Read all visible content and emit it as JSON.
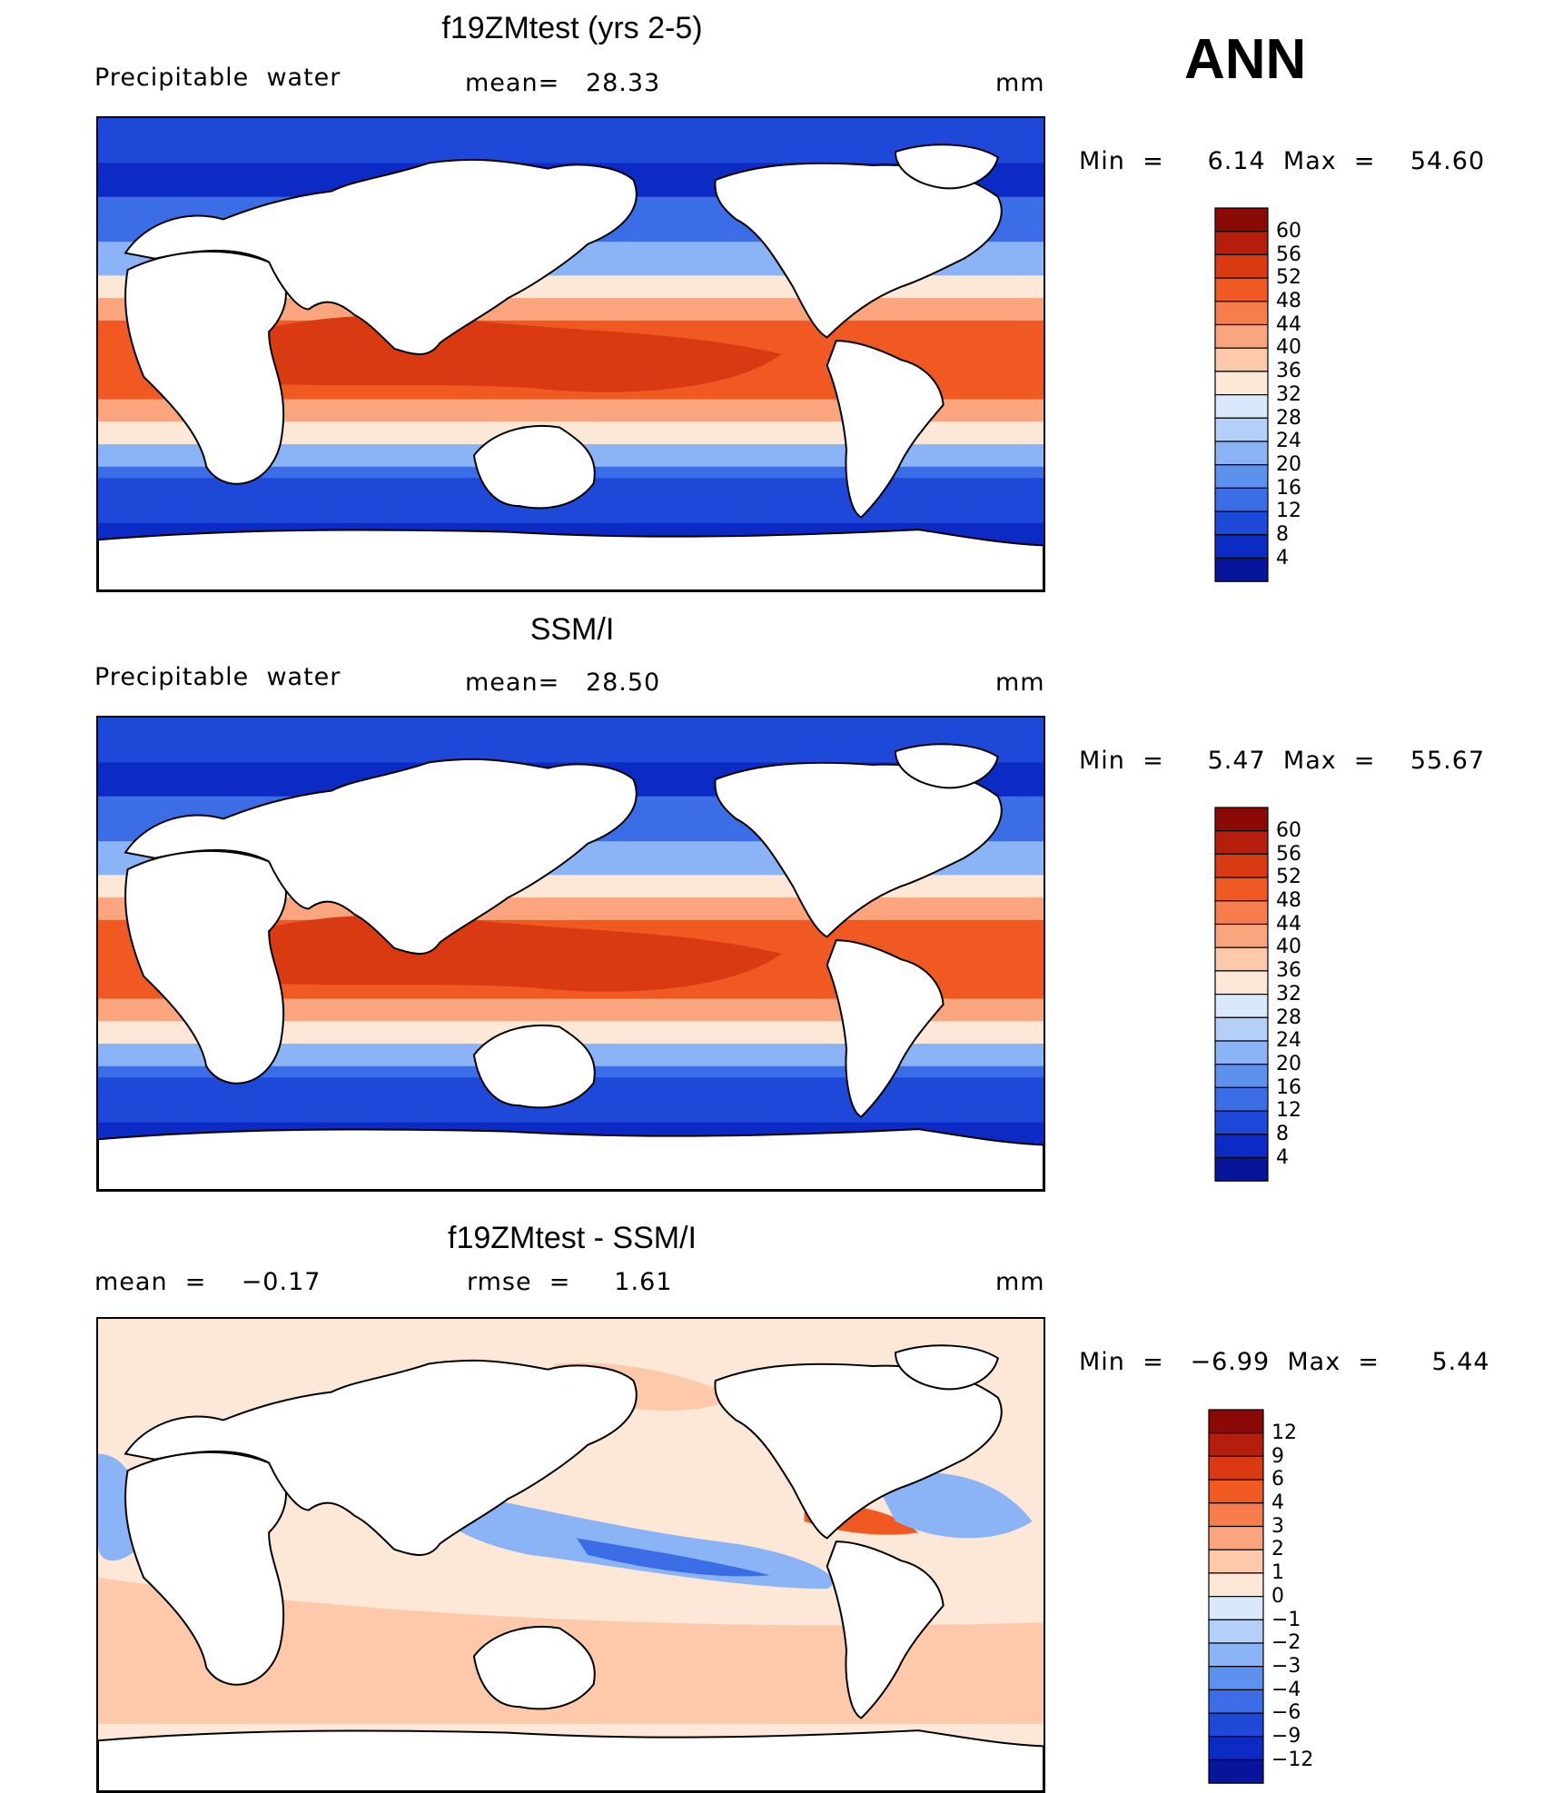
{
  "season": "ANN",
  "panels": [
    {
      "id": "model",
      "title": "f19ZMtest (yrs 2-5)",
      "left_header": "Precipitable  water",
      "mid_header": "mean=   28.33",
      "units": "mm",
      "minmax": "Min  =     6.14  Max  =    54.60",
      "scale": "absolute"
    },
    {
      "id": "obs",
      "title": "SSM/I",
      "left_header": "Precipitable  water",
      "mid_header": "mean=   28.50",
      "units": "mm",
      "minmax": "Min  =     5.47  Max  =    55.67",
      "scale": "absolute"
    },
    {
      "id": "diff",
      "title": "f19ZMtest - SSM/I",
      "left_header": "mean  =    −0.17",
      "mid_header": "rmse  =     1.61",
      "units": "mm",
      "minmax": "Min  =   −6.99  Max  =      5.44",
      "scale": "difference"
    }
  ],
  "colorbars": {
    "absolute": {
      "labels": [
        "60",
        "56",
        "52",
        "48",
        "44",
        "40",
        "36",
        "32",
        "28",
        "24",
        "20",
        "16",
        "12",
        "8",
        "4"
      ],
      "colors": [
        "#8b0a06",
        "#b51e0d",
        "#d93a12",
        "#f05a22",
        "#f77d4c",
        "#faa57d",
        "#fdc9aa",
        "#fde7d6",
        "#d9e8fa",
        "#b4d0f8",
        "#8ab4f5",
        "#5c92ee",
        "#3a6de6",
        "#1d48d8",
        "#0c2ac4",
        "#06159a"
      ]
    },
    "difference": {
      "labels": [
        "12",
        "9",
        "6",
        "4",
        "3",
        "2",
        "1",
        "0",
        "−1",
        "−2",
        "−3",
        "−4",
        "−6",
        "−9",
        "−12"
      ],
      "colors": [
        "#8b0a06",
        "#b51e0d",
        "#d93a12",
        "#f05a22",
        "#f77d4c",
        "#faa57d",
        "#fdc9aa",
        "#fde7d6",
        "#d9e8fa",
        "#b4d0f8",
        "#8ab4f5",
        "#5c92ee",
        "#3a6de6",
        "#1d48d8",
        "#0c2ac4",
        "#06159a"
      ]
    }
  }
}
